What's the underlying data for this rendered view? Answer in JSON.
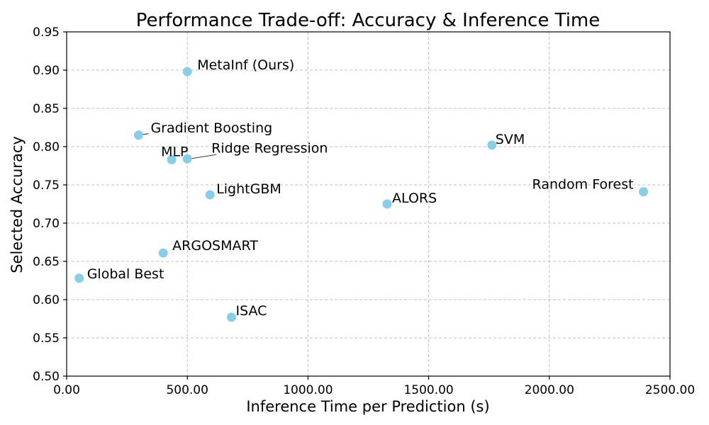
{
  "chart_data": {
    "type": "scatter",
    "title": "Performance Trade-off: Accuracy & Inference Time",
    "xlabel": "Inference Time per Prediction (s)",
    "ylabel": "Selected Accuracy",
    "xlim": [
      0,
      2500
    ],
    "ylim": [
      0.5,
      0.95
    ],
    "xticks": [
      0,
      500,
      1000,
      1500,
      2000,
      2500
    ],
    "xtick_labels": [
      "0.00",
      "500.00",
      "1000.00",
      "1500.00",
      "2000.00",
      "2500.00"
    ],
    "yticks": [
      0.5,
      0.55,
      0.6,
      0.65,
      0.7,
      0.75,
      0.8,
      0.85,
      0.9,
      0.95
    ],
    "ytick_labels": [
      "0.50",
      "0.55",
      "0.60",
      "0.65",
      "0.70",
      "0.75",
      "0.80",
      "0.85",
      "0.90",
      "0.95"
    ],
    "grid": true,
    "marker_color": "#87ceeb",
    "points": [
      {
        "label": "MetaInf (Ours)",
        "x": 500,
        "y": 0.898
      },
      {
        "label": "Gradient Boosting",
        "x": 298,
        "y": 0.815
      },
      {
        "label": "SVM",
        "x": 1762,
        "y": 0.802
      },
      {
        "label": "MLP",
        "x": 435,
        "y": 0.783
      },
      {
        "label": "Ridge Regression",
        "x": 500,
        "y": 0.784
      },
      {
        "label": "LightGBM",
        "x": 594,
        "y": 0.737
      },
      {
        "label": "Random Forest",
        "x": 2390,
        "y": 0.741
      },
      {
        "label": "ALORS",
        "x": 1328,
        "y": 0.725
      },
      {
        "label": "ARGOSMART",
        "x": 400,
        "y": 0.661
      },
      {
        "label": "Global Best",
        "x": 52,
        "y": 0.628
      },
      {
        "label": "ISAC",
        "x": 683,
        "y": 0.577
      }
    ]
  }
}
